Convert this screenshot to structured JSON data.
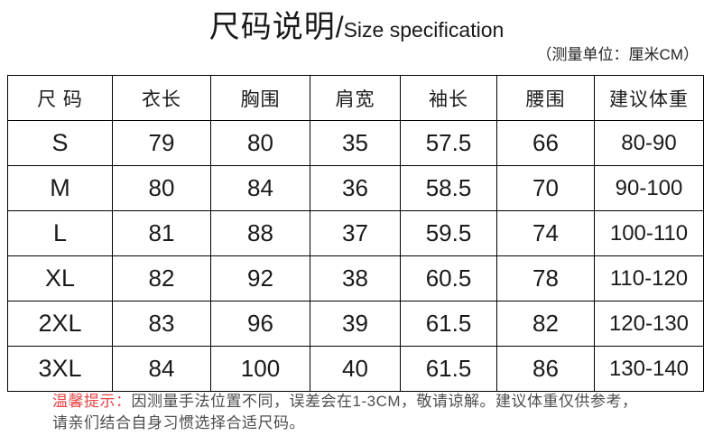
{
  "page": {
    "title_cn": "尺码说明",
    "title_slash": "/",
    "title_en": "Size specification",
    "unit_note": "（测量单位：厘米CM）"
  },
  "table": {
    "headers": [
      "尺 码",
      "衣长",
      "胸围",
      "肩宽",
      "袖长",
      "腰围",
      "建议体重"
    ],
    "rows": [
      [
        "S",
        "79",
        "80",
        "35",
        "57.5",
        "66",
        "80-90"
      ],
      [
        "M",
        "80",
        "84",
        "36",
        "58.5",
        "70",
        "90-100"
      ],
      [
        "L",
        "81",
        "88",
        "37",
        "59.5",
        "74",
        "100-110"
      ],
      [
        "XL",
        "82",
        "92",
        "38",
        "60.5",
        "78",
        "110-120"
      ],
      [
        "2XL",
        "83",
        "96",
        "39",
        "61.5",
        "82",
        "120-130"
      ],
      [
        "3XL",
        "84",
        "100",
        "40",
        "61.5",
        "86",
        "130-140"
      ]
    ]
  },
  "footer": {
    "notice_label": "温馨提示：",
    "line1": "因测量手法位置不同，误差会在1-3CM，敬请谅解。建议体重仅供参考，",
    "line2": "请亲们结合自身习惯选择合适尺码。"
  },
  "colors": {
    "notice_red": "#e64444",
    "body_text": "#4d4d4d",
    "table_text": "#1a1a1a",
    "border": "#000000",
    "background": "#ffffff"
  }
}
